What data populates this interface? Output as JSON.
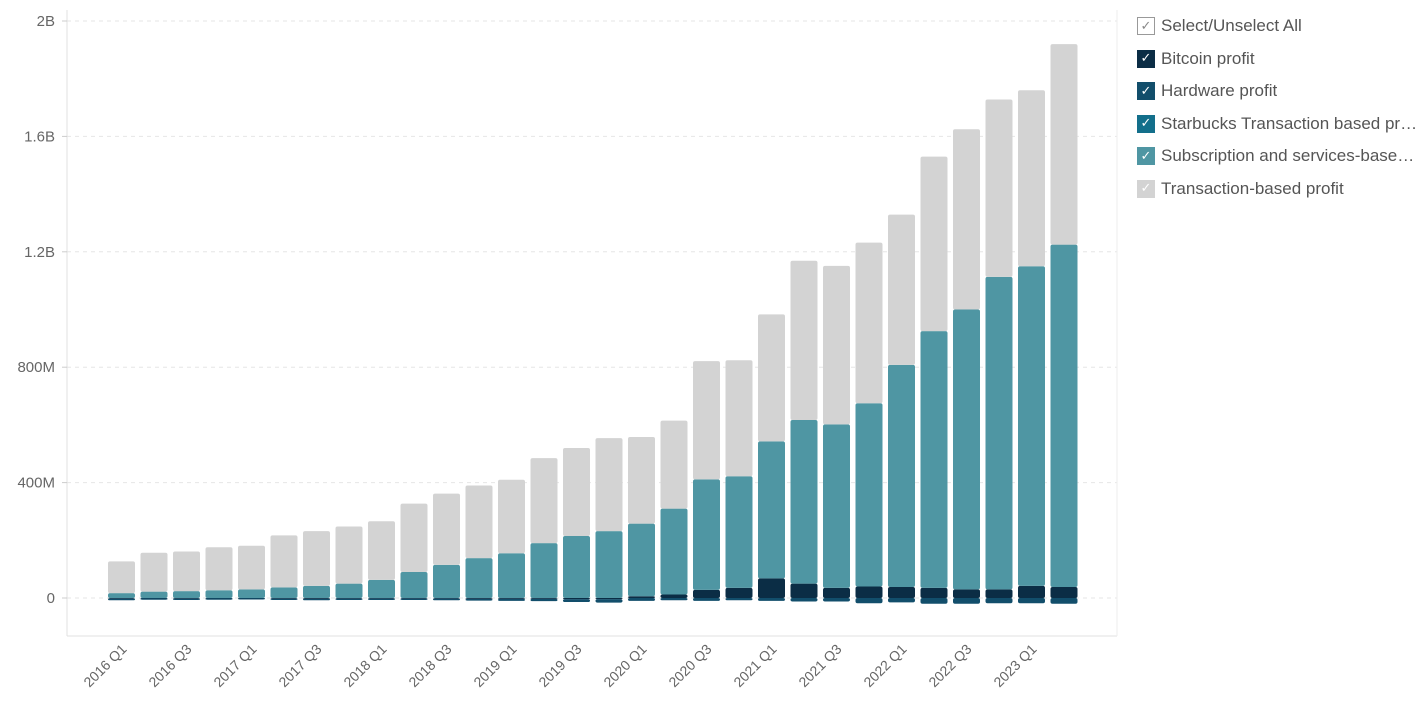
{
  "legend": {
    "select_all": "Select/Unselect All",
    "items": [
      {
        "label": "Bitcoin profit",
        "color": "#0b2d45"
      },
      {
        "label": "Hardware profit",
        "color": "#124e6b"
      },
      {
        "label": "Starbucks Transaction based profit",
        "color": "#136f8b"
      },
      {
        "label": "Subscription and services-based profit",
        "color": "#4f96a3"
      },
      {
        "label": "Transaction-based profit",
        "color": "#d3d3d3"
      }
    ]
  },
  "chart_data": {
    "type": "bar",
    "stacked": true,
    "ylim": [
      -130000000,
      2000000000
    ],
    "yticks": [
      0,
      400000000,
      800000000,
      1200000000,
      1600000000,
      2000000000
    ],
    "ytick_labels": [
      "0",
      "400M",
      "800M",
      "1.2B",
      "1.6B",
      "2B"
    ],
    "grid": true,
    "legend_position": "right",
    "x": [
      "2016 Q1",
      "2016 Q2",
      "2016 Q3",
      "2016 Q4",
      "2017 Q1",
      "2017 Q2",
      "2017 Q3",
      "2017 Q4",
      "2018 Q1",
      "2018 Q2",
      "2018 Q3",
      "2018 Q4",
      "2019 Q1",
      "2019 Q2",
      "2019 Q3",
      "2019 Q4",
      "2020 Q1",
      "2020 Q2",
      "2020 Q3",
      "2020 Q4",
      "2021 Q1",
      "2021 Q2",
      "2021 Q3",
      "2021 Q4",
      "2022 Q1",
      "2022 Q2",
      "2022 Q3",
      "2022 Q4",
      "2023 Q1",
      "2023 Q2"
    ],
    "x_tick_labels": [
      "2016 Q1",
      "",
      "2016 Q3",
      "",
      "2017 Q1",
      "",
      "2017 Q3",
      "",
      "2018 Q1",
      "",
      "2018 Q3",
      "",
      "2019 Q1",
      "",
      "2019 Q3",
      "",
      "2020 Q1",
      "",
      "2020 Q3",
      "",
      "2021 Q1",
      "",
      "2021 Q3",
      "",
      "2022 Q1",
      "",
      "2022 Q3",
      "",
      "2023 Q1",
      ""
    ],
    "series": [
      {
        "name": "Bitcoin profit",
        "color": "#0b2d45",
        "values": [
          -2000000,
          -1000000,
          -2000000,
          -1000000,
          -1000000,
          -2000000,
          -3000000,
          -2000000,
          -2000000,
          -2000000,
          -2000000,
          -3000000,
          -3000000,
          -3000000,
          -4000000,
          -4000000,
          6000000,
          12000000,
          28000000,
          35000000,
          68000000,
          50000000,
          35000000,
          40000000,
          38000000,
          35000000,
          30000000,
          30000000,
          42000000,
          38000000
        ]
      },
      {
        "name": "Hardware profit",
        "color": "#124e6b",
        "values": [
          -6000000,
          -5000000,
          -5000000,
          -5000000,
          -4000000,
          -5000000,
          -5000000,
          -5000000,
          -5000000,
          -5000000,
          -6000000,
          -6000000,
          -7000000,
          -8000000,
          -10000000,
          -12000000,
          -10000000,
          -8000000,
          -10000000,
          -8000000,
          -10000000,
          -12000000,
          -12000000,
          -18000000,
          -15000000,
          -20000000,
          -20000000,
          -18000000,
          -18000000,
          -20000000
        ]
      },
      {
        "name": "Starbucks Transaction based profit",
        "color": "#136f8b",
        "values": [
          0,
          0,
          0,
          0,
          0,
          0,
          0,
          0,
          0,
          0,
          0,
          0,
          0,
          0,
          0,
          0,
          0,
          0,
          0,
          0,
          0,
          0,
          0,
          0,
          0,
          0,
          0,
          0,
          0,
          0
        ]
      },
      {
        "name": "Subscription and services-based profit",
        "color": "#4f96a3",
        "values": [
          17000000,
          22000000,
          24000000,
          27000000,
          30000000,
          37000000,
          42000000,
          50000000,
          63000000,
          90000000,
          115000000,
          138000000,
          155000000,
          190000000,
          215000000,
          232000000,
          252000000,
          298000000,
          383000000,
          387000000,
          475000000,
          567000000,
          567000000,
          635000000,
          770000000,
          890000000,
          970000000,
          1083000000,
          1108000000,
          1187000000
        ]
      },
      {
        "name": "Transaction-based profit",
        "color": "#d3d3d3",
        "values": [
          110000000,
          135000000,
          137000000,
          149000000,
          151000000,
          180000000,
          190000000,
          198000000,
          203000000,
          237000000,
          247000000,
          252000000,
          255000000,
          295000000,
          305000000,
          322000000,
          300000000,
          305000000,
          410000000,
          402000000,
          440000000,
          552000000,
          549000000,
          557000000,
          521000000,
          605000000,
          625000000,
          615000000,
          610000000,
          695000000
        ]
      }
    ]
  }
}
